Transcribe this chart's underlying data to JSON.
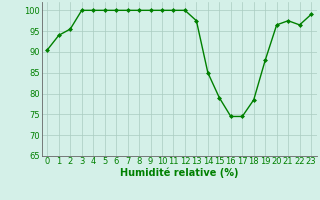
{
  "x": [
    0,
    1,
    2,
    3,
    4,
    5,
    6,
    7,
    8,
    9,
    10,
    11,
    12,
    13,
    14,
    15,
    16,
    17,
    18,
    19,
    20,
    21,
    22,
    23
  ],
  "y": [
    90.5,
    94,
    95.5,
    100,
    100,
    100,
    100,
    100,
    100,
    100,
    100,
    100,
    100,
    97.5,
    85,
    79,
    74.5,
    74.5,
    78.5,
    88,
    96.5,
    97.5,
    96.5,
    99
  ],
  "xlim": [
    -0.5,
    23.5
  ],
  "ylim": [
    65,
    102
  ],
  "yticks": [
    65,
    70,
    75,
    80,
    85,
    90,
    95,
    100
  ],
  "xticks": [
    0,
    1,
    2,
    3,
    4,
    5,
    6,
    7,
    8,
    9,
    10,
    11,
    12,
    13,
    14,
    15,
    16,
    17,
    18,
    19,
    20,
    21,
    22,
    23
  ],
  "xlabel": "Humidité relative (%)",
  "line_color": "#008000",
  "marker_color": "#008000",
  "bg_color": "#d4f0e8",
  "grid_color": "#aaccc0",
  "tick_color": "#008000",
  "label_color": "#008000",
  "xlabel_fontsize": 7.0,
  "tick_fontsize": 6.0,
  "marker": "D",
  "markersize": 2.0,
  "linewidth": 1.0
}
